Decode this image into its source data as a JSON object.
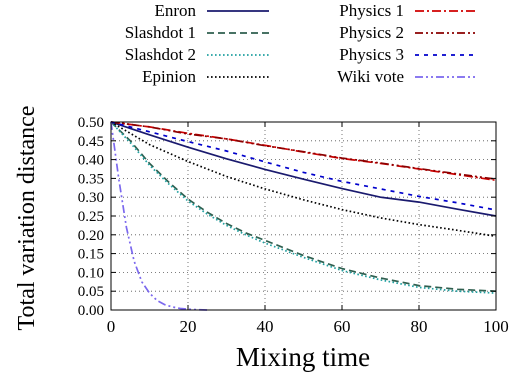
{
  "chart_data": {
    "type": "line",
    "title": "",
    "xlabel": "Mixing time",
    "ylabel": "Total variation distance",
    "xlim": [
      0,
      100
    ],
    "ylim": [
      0,
      0.5
    ],
    "xticks": [
      0,
      20,
      40,
      60,
      80,
      100
    ],
    "xtick_labels": [
      "0",
      "20",
      "40",
      "60",
      "80",
      "100"
    ],
    "yticks": [
      0,
      0.05,
      0.1,
      0.15,
      0.2,
      0.25,
      0.3,
      0.35,
      0.4,
      0.45,
      0.5
    ],
    "ytick_labels": [
      "0.00",
      "0.05",
      "0.10",
      "0.15",
      "0.20",
      "0.25",
      "0.30",
      "0.35",
      "0.40",
      "0.45",
      "0.50"
    ],
    "grid": true,
    "legend_position": "top, two columns above the plot",
    "series": [
      {
        "name": "Enron",
        "color": "#1a1a6e",
        "dash": "solid",
        "x": [
          0,
          10,
          20,
          30,
          40,
          50,
          60,
          70,
          80,
          90,
          100
        ],
        "y": [
          0.5,
          0.466,
          0.433,
          0.402,
          0.374,
          0.348,
          0.323,
          0.3,
          0.287,
          0.268,
          0.25
        ]
      },
      {
        "name": "Slashdot 1",
        "color": "#2f5f4f",
        "dash": "dashed",
        "x": [
          0,
          5,
          10,
          15,
          20,
          25,
          30,
          35,
          40,
          50,
          60,
          70,
          80,
          90,
          100
        ],
        "y": [
          0.5,
          0.45,
          0.39,
          0.34,
          0.295,
          0.26,
          0.23,
          0.205,
          0.185,
          0.145,
          0.11,
          0.085,
          0.065,
          0.055,
          0.05
        ]
      },
      {
        "name": "Slashdot 2",
        "color": "#20a0a0",
        "dash": "dotted",
        "x": [
          0,
          5,
          10,
          15,
          20,
          25,
          30,
          35,
          40,
          50,
          60,
          70,
          80,
          90,
          100
        ],
        "y": [
          0.5,
          0.445,
          0.385,
          0.335,
          0.29,
          0.255,
          0.225,
          0.2,
          0.178,
          0.14,
          0.105,
          0.08,
          0.06,
          0.05,
          0.045
        ]
      },
      {
        "name": "Epinion",
        "color": "#000000",
        "dash": "dotted",
        "x": [
          0,
          10,
          20,
          30,
          40,
          50,
          60,
          70,
          80,
          90,
          100
        ],
        "y": [
          0.5,
          0.44,
          0.395,
          0.355,
          0.322,
          0.293,
          0.267,
          0.245,
          0.227,
          0.212,
          0.196
        ]
      },
      {
        "name": "Physics 1",
        "color": "#d00000",
        "dash": "dashdot",
        "x": [
          0,
          10,
          20,
          30,
          40,
          50,
          60,
          70,
          80,
          90,
          100
        ],
        "y": [
          0.5,
          0.487,
          0.47,
          0.455,
          0.438,
          0.42,
          0.403,
          0.39,
          0.375,
          0.36,
          0.345
        ]
      },
      {
        "name": "Physics 2",
        "color": "#8b0000",
        "dash": "dashdotdot",
        "x": [
          0,
          10,
          20,
          30,
          40,
          50,
          60,
          70,
          80,
          90,
          100
        ],
        "y": [
          0.5,
          0.487,
          0.468,
          0.455,
          0.437,
          0.421,
          0.404,
          0.391,
          0.376,
          0.362,
          0.348
        ]
      },
      {
        "name": "Physics 3",
        "color": "#0000cc",
        "dash": "shortdash",
        "x": [
          0,
          10,
          20,
          30,
          40,
          50,
          60,
          70,
          80,
          90,
          100
        ],
        "y": [
          0.5,
          0.474,
          0.448,
          0.423,
          0.394,
          0.366,
          0.342,
          0.322,
          0.302,
          0.285,
          0.266
        ]
      },
      {
        "name": "Wiki vote",
        "color": "#7b68ee",
        "dash": "dashdotdot",
        "x": [
          0,
          2,
          4,
          6,
          8,
          10,
          12,
          14,
          16,
          18,
          20,
          22,
          25
        ],
        "y": [
          0.5,
          0.35,
          0.22,
          0.13,
          0.075,
          0.045,
          0.025,
          0.014,
          0.008,
          0.004,
          0.002,
          0.001,
          0.0
        ]
      }
    ]
  }
}
